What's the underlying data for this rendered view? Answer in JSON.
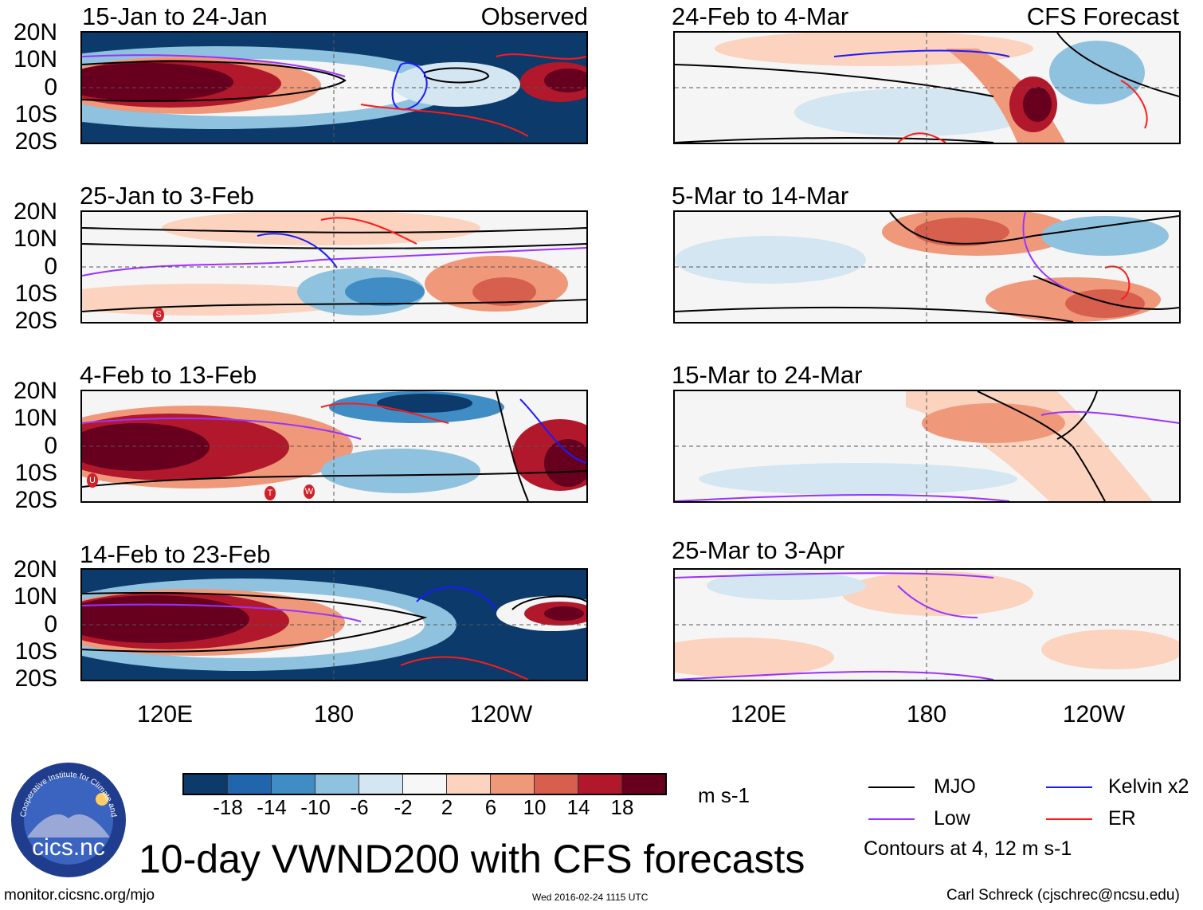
{
  "colors": {
    "neg_strong": "#0b3a6b",
    "neg_mid": "#2c6fb2",
    "neg_light": "#7fb3d8",
    "neutral": "#f5f5f5",
    "pos_light": "#f4b59a",
    "pos_mid": "#d6604d",
    "pos_strong": "#7f0b16",
    "mjo": "#000000",
    "low": "#9933ff",
    "kelvin": "#1a1aff",
    "er": "#ff1a1a"
  },
  "axes": {
    "y_labels": [
      "20N",
      "10N",
      "0",
      "10S",
      "20S"
    ],
    "x_labels": [
      "120E",
      "180",
      "120W"
    ]
  },
  "observed_tag": "Observed",
  "forecast_tag": "CFS Forecast",
  "panels_observed": [
    {
      "title": "15-Jan to 24-Jan"
    },
    {
      "title": "25-Jan to 3-Feb"
    },
    {
      "title": "4-Feb to 13-Feb"
    },
    {
      "title": "14-Feb to 23-Feb"
    }
  ],
  "panels_forecast": [
    {
      "title": "24-Feb to 4-Mar"
    },
    {
      "title": "5-Mar to 14-Mar"
    },
    {
      "title": "15-Mar to 24-Mar"
    },
    {
      "title": "25-Mar to 3-Apr"
    }
  ],
  "colorbar": {
    "ticks": [
      "-18",
      "-14",
      "-10",
      "-6",
      "-2",
      "2",
      "6",
      "10",
      "14",
      "18"
    ],
    "unit": "m s-1",
    "colors": [
      "#0b3a6b",
      "#2166ac",
      "#3f8dc4",
      "#8fc2de",
      "#d4e6f1",
      "#f7f7f7",
      "#fbd3bf",
      "#f0987a",
      "#d6604d",
      "#b2182b",
      "#67001f"
    ]
  },
  "legend": {
    "mjo": "MJO",
    "kelvin": "Kelvin x2",
    "low": "Low",
    "er": "ER",
    "contours": "Contours at 4, 12 m s-1"
  },
  "logo_text": "cics.nc",
  "logo_ring_text": "Cooperative Institute for Climate and Satellites",
  "main_title": "10-day VWND200 with CFS forecasts",
  "footer": {
    "url": "monitor.cicsnc.org/mjo",
    "timestamp": "Wed 2016-02-24 1115 UTC",
    "author": "Carl Schreck (cjschrec@ncsu.edu)"
  },
  "storm_markers": {
    "p2": [
      "S"
    ],
    "p3": [
      "U",
      "T",
      "W"
    ]
  }
}
